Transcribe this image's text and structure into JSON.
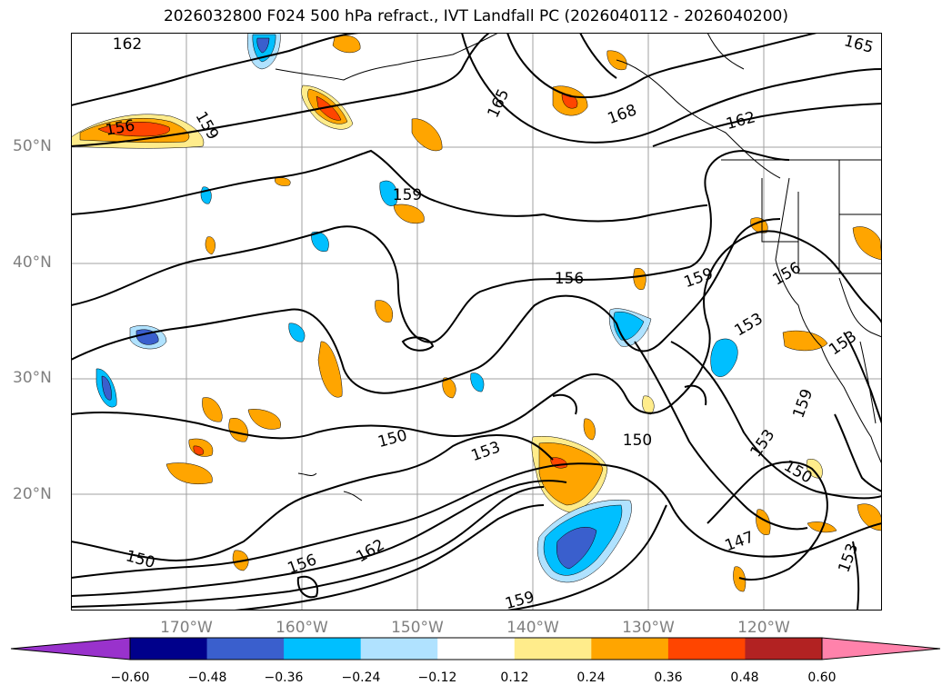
{
  "title": "2026032800 F024 500 hPa refract., IVT Landfall PC (2026040112 - 2026040200)",
  "map": {
    "lat_labels": [
      "50°N",
      "40°N",
      "30°N",
      "20°N"
    ],
    "lon_labels": [
      "170°W",
      "160°W",
      "150°W",
      "140°W",
      "130°W",
      "120°W"
    ],
    "contour_labels": [
      "162",
      "165",
      "156",
      "159",
      "165",
      "168",
      "162",
      "159",
      "156",
      "159",
      "156",
      "153",
      "153",
      "150",
      "153",
      "150",
      "153",
      "159",
      "150",
      "150",
      "156",
      "162",
      "147",
      "153",
      "159"
    ]
  },
  "colorbar": {
    "ticks": [
      "−0.60",
      "−0.48",
      "−0.36",
      "−0.24",
      "−0.12",
      "0.12",
      "0.24",
      "0.36",
      "0.48",
      "0.60"
    ],
    "colors": [
      "#9932cc",
      "#00008b",
      "#3a5fcd",
      "#00bfff",
      "#b0e2ff",
      "#ffffff",
      "#ffec8b",
      "#ffa500",
      "#ff4500",
      "#b22222",
      "#ff82ab"
    ]
  }
}
